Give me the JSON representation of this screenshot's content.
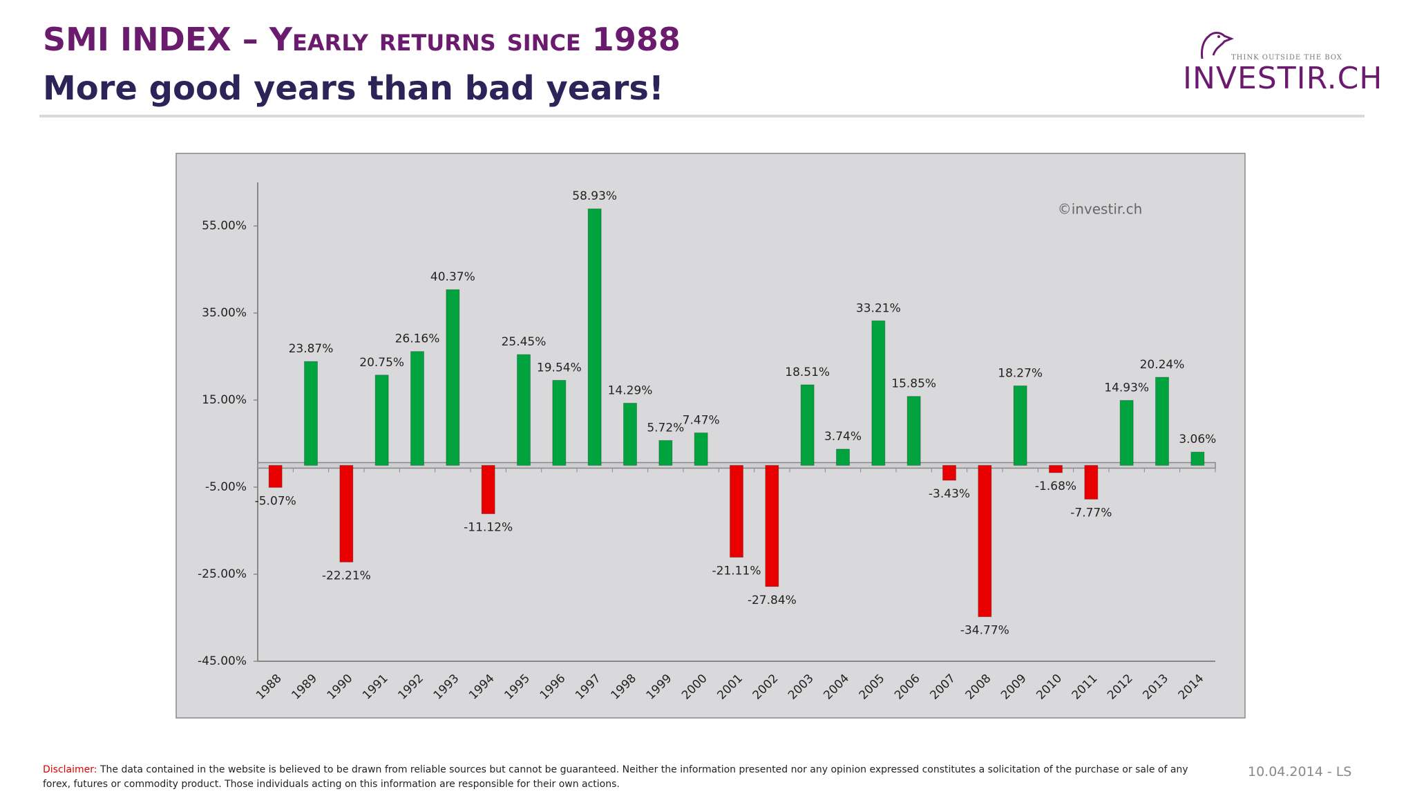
{
  "header": {
    "title": "SMI INDEX – Yearly returns since 1988",
    "subtitle": "More good years than bad years!",
    "logo_text": "INVESTIR.CH",
    "logo_tagline": "THINK OUTSIDE THE BOX"
  },
  "chart_data": {
    "type": "bar",
    "watermark": "©investir.ch",
    "categories": [
      "1988",
      "1989",
      "1990",
      "1991",
      "1992",
      "1993",
      "1994",
      "1995",
      "1996",
      "1997",
      "1998",
      "1999",
      "2000",
      "2001",
      "2002",
      "2003",
      "2004",
      "2005",
      "2006",
      "2007",
      "2008",
      "2009",
      "2010",
      "2011",
      "2012",
      "2013",
      "2014"
    ],
    "values": [
      -5.07,
      23.87,
      -22.21,
      20.75,
      26.16,
      40.37,
      -11.12,
      25.45,
      19.54,
      58.93,
      14.29,
      5.72,
      7.47,
      -21.11,
      -27.84,
      18.51,
      3.74,
      33.21,
      15.85,
      -3.43,
      -34.77,
      18.27,
      -1.68,
      -7.77,
      14.93,
      20.24,
      3.06
    ],
    "value_labels": [
      "-5.07%",
      "23.87%",
      "-22.21%",
      "20.75%",
      "26.16%",
      "40.37%",
      "-11.12%",
      "25.45%",
      "19.54%",
      "58.93%",
      "14.29%",
      "5.72%",
      "7.47%",
      "-21.11%",
      "-27.84%",
      "18.51%",
      "3.74%",
      "33.21%",
      "15.85%",
      "-3.43%",
      "-34.77%",
      "18.27%",
      "-1.68%",
      "-7.77%",
      "14.93%",
      "20.24%",
      "3.06%"
    ],
    "colors": {
      "positive": "#00a33e",
      "negative": "#e80000"
    },
    "ylim": [
      -45,
      65
    ],
    "yticks": [
      {
        "value": -45,
        "label": "-45.00%"
      },
      {
        "value": -25,
        "label": "-25.00%"
      },
      {
        "value": -5,
        "label": "-5.00%"
      },
      {
        "value": 15,
        "label": "15.00%"
      },
      {
        "value": 35,
        "label": "35.00%"
      },
      {
        "value": 55,
        "label": "55.00%"
      }
    ],
    "grid": false
  },
  "footer": {
    "disclaimer_label": "Disclaimer:",
    "disclaimer_text": "The data contained in the website is believed to be drawn from reliable sources but cannot be guaranteed. Neither the information presented nor any opinion expressed constitutes a solicitation of the purchase or sale of any forex, futures or commodity product. Those individuals acting on this information are responsible for their own actions.",
    "date": "10.04.2014 - LS"
  }
}
